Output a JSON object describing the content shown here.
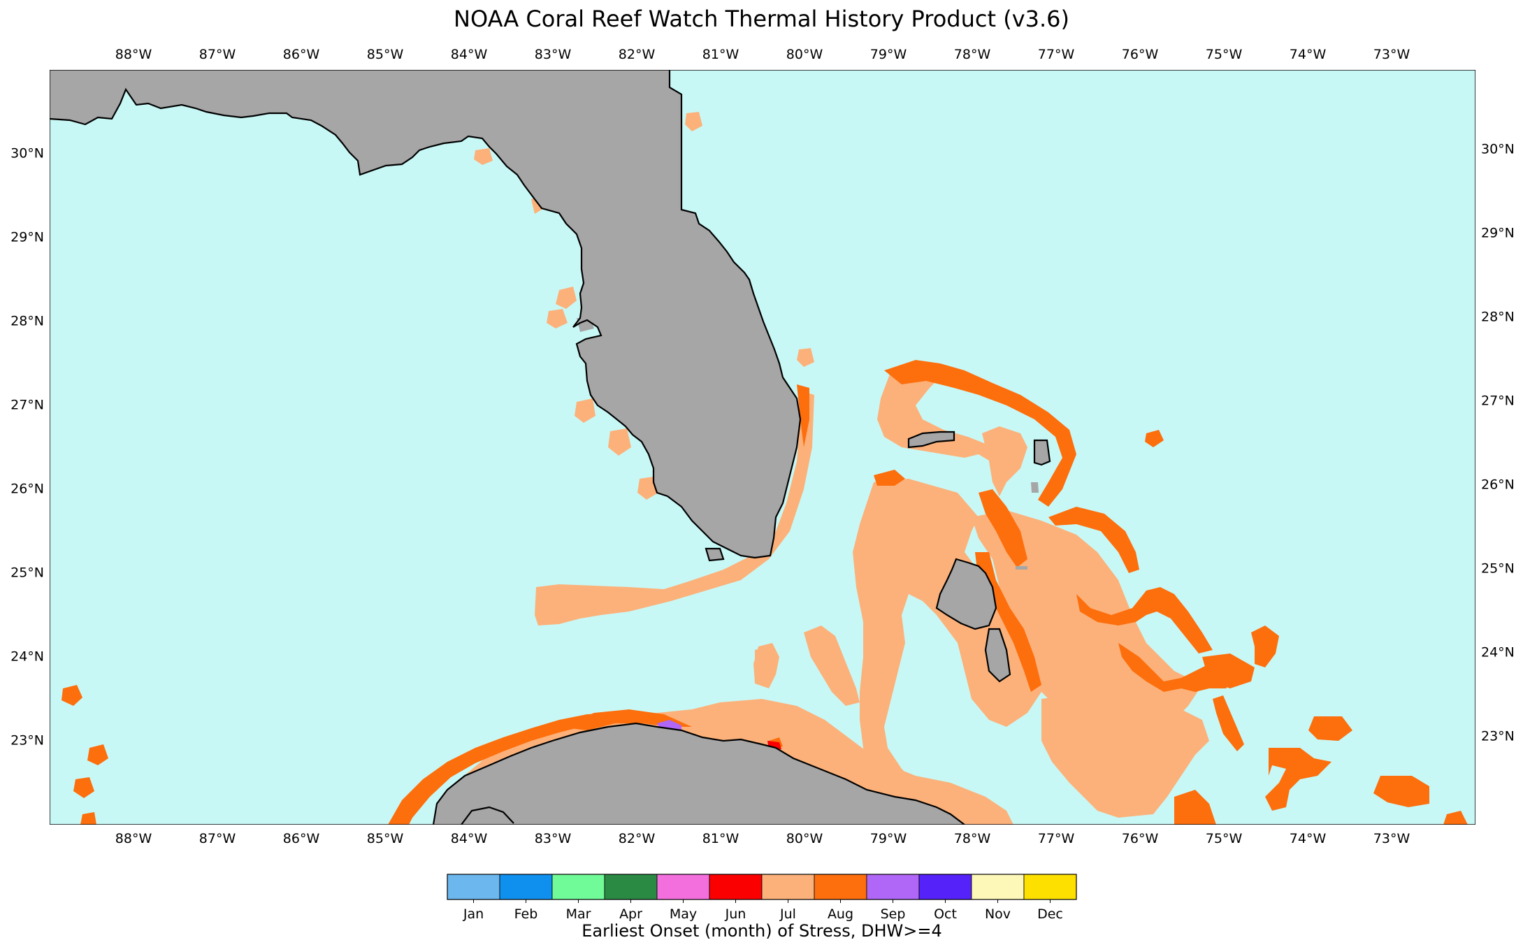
{
  "title": "NOAA Coral Reef Watch Thermal History Product (v3.6)",
  "colors": {
    "ocean": "#c8f8f6",
    "land": "#a6a6a6",
    "coast": "#000000",
    "jul": "#fcb17a",
    "aug": "#fd6e0c",
    "jun": "#fb0000",
    "may": "#f46fde",
    "sep": "#b066f6"
  },
  "map": {
    "lon_range": [
      -89.0,
      -72.0
    ],
    "lat_range": [
      22.0,
      31.0
    ],
    "lon_ticks": [
      {
        "value": -88,
        "label": "88°W"
      },
      {
        "value": -87,
        "label": "87°W"
      },
      {
        "value": -86,
        "label": "86°W"
      },
      {
        "value": -85,
        "label": "85°W"
      },
      {
        "value": -84,
        "label": "84°W"
      },
      {
        "value": -83,
        "label": "83°W"
      },
      {
        "value": -82,
        "label": "82°W"
      },
      {
        "value": -81,
        "label": "81°W"
      },
      {
        "value": -80,
        "label": "80°W"
      },
      {
        "value": -79,
        "label": "79°W"
      },
      {
        "value": -78,
        "label": "78°W"
      },
      {
        "value": -77,
        "label": "77°W"
      },
      {
        "value": -76,
        "label": "76°W"
      },
      {
        "value": -75,
        "label": "75°W"
      },
      {
        "value": -74,
        "label": "74°W"
      },
      {
        "value": -73,
        "label": "73°W"
      }
    ],
    "lat_ticks": [
      {
        "value": 30,
        "label": "30°N"
      },
      {
        "value": 29,
        "label": "29°N"
      },
      {
        "value": 28,
        "label": "28°N"
      },
      {
        "value": 27,
        "label": "27°N"
      },
      {
        "value": 26,
        "label": "26°N"
      },
      {
        "value": 25,
        "label": "25°N"
      },
      {
        "value": 24,
        "label": "24°N"
      },
      {
        "value": 23,
        "label": "23°N"
      }
    ]
  },
  "legend": {
    "title": "Earliest Onset (month) of Stress, DHW>=4",
    "months": [
      {
        "label": "Jan",
        "color": "#6bb7ee"
      },
      {
        "label": "Feb",
        "color": "#1090ee"
      },
      {
        "label": "Mar",
        "color": "#70fa98"
      },
      {
        "label": "Apr",
        "color": "#2a8a44"
      },
      {
        "label": "May",
        "color": "#f46fde"
      },
      {
        "label": "Jun",
        "color": "#fb0000"
      },
      {
        "label": "Jul",
        "color": "#fcb17a"
      },
      {
        "label": "Aug",
        "color": "#fd6e0c"
      },
      {
        "label": "Sep",
        "color": "#b066f6"
      },
      {
        "label": "Oct",
        "color": "#5522fa"
      },
      {
        "label": "Nov",
        "color": "#fef8b8"
      },
      {
        "label": "Dec",
        "color": "#fde000"
      }
    ]
  }
}
